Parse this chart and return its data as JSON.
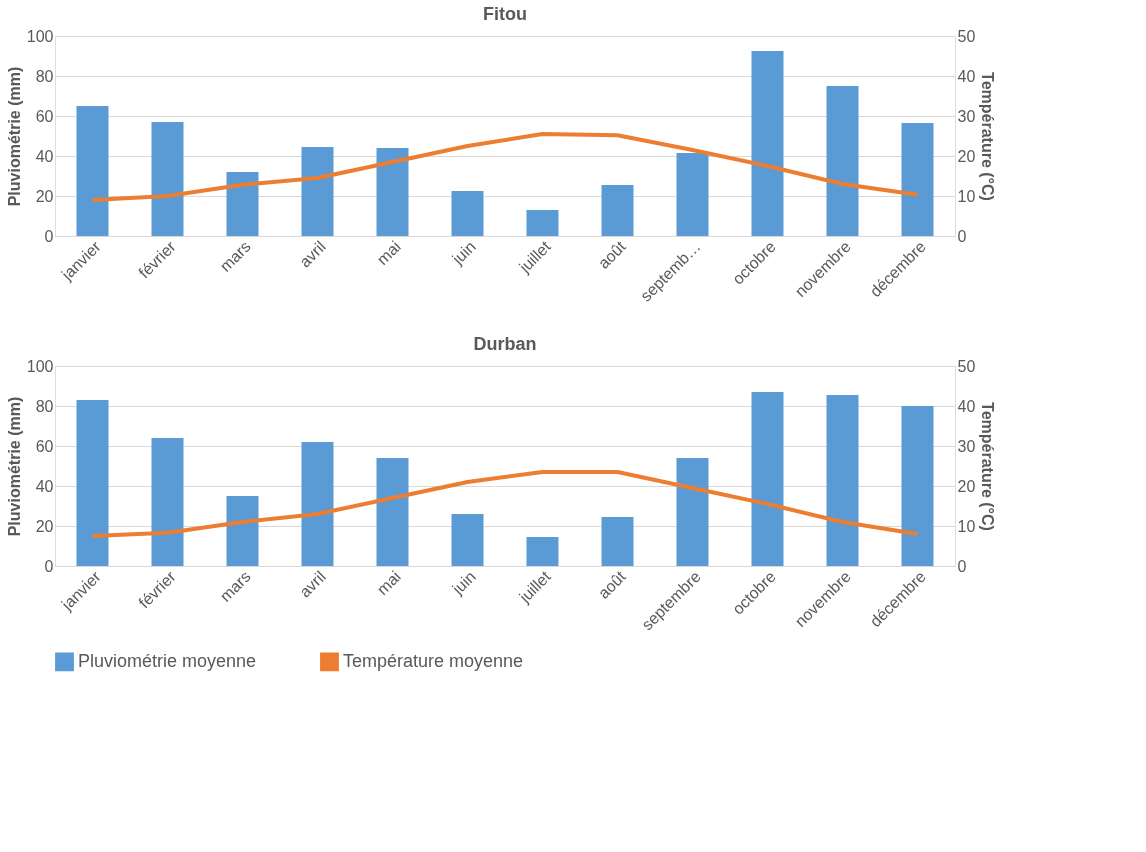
{
  "chart_data": [
    {
      "type": "bar",
      "title": "Fitou",
      "categories": [
        "janvier",
        "février",
        "mars",
        "avril",
        "mai",
        "juin",
        "juillet",
        "août",
        "septemb…",
        "octobre",
        "novembre",
        "décembre"
      ],
      "ylabel": "Pluviométrie (mm)",
      "y2label": "Température (°C)",
      "ylim": [
        0,
        100
      ],
      "yticks": [
        0,
        20,
        40,
        60,
        80,
        100
      ],
      "y2lim": [
        0,
        50
      ],
      "y2ticks": [
        0,
        10,
        20,
        30,
        40,
        50
      ],
      "grid": "y",
      "series": [
        {
          "color": "#5b9bd5",
          "values": [
            65,
            57,
            32,
            44.5,
            44,
            22.5,
            13,
            25.5,
            41.5,
            92.5,
            75,
            56.5
          ]
        },
        {
          "type": "line",
          "axis": "y2",
          "color": "#ed7d31",
          "values": [
            9,
            10,
            12.8,
            14.5,
            18.5,
            22.5,
            25.5,
            25.2,
            21.5,
            17.5,
            13,
            10.3
          ]
        }
      ]
    },
    {
      "type": "bar",
      "title": "Durban",
      "categories": [
        "janvier",
        "février",
        "mars",
        "avril",
        "mai",
        "juin",
        "juillet",
        "août",
        "septembre",
        "octobre",
        "novembre",
        "décembre"
      ],
      "ylabel": "Pluviométrie (mm)",
      "y2label": "Température (°C)",
      "ylim": [
        0,
        100
      ],
      "yticks": [
        0,
        20,
        40,
        60,
        80,
        100
      ],
      "y2lim": [
        0,
        50
      ],
      "y2ticks": [
        0,
        10,
        20,
        30,
        40,
        50
      ],
      "grid": "y",
      "legend": "bottom",
      "series": [
        {
          "name": "Pluviométrie moyenne",
          "color": "#5b9bd5",
          "values": [
            83,
            64,
            35,
            62,
            54,
            26,
            14.5,
            24.5,
            54,
            87,
            85.5,
            80
          ]
        },
        {
          "type": "line",
          "axis": "y2",
          "name": "Température moyenne",
          "color": "#ed7d31",
          "values": [
            7.5,
            8.3,
            11,
            13,
            17,
            21,
            23.5,
            23.5,
            19.5,
            15.5,
            11,
            8
          ]
        }
      ]
    }
  ]
}
